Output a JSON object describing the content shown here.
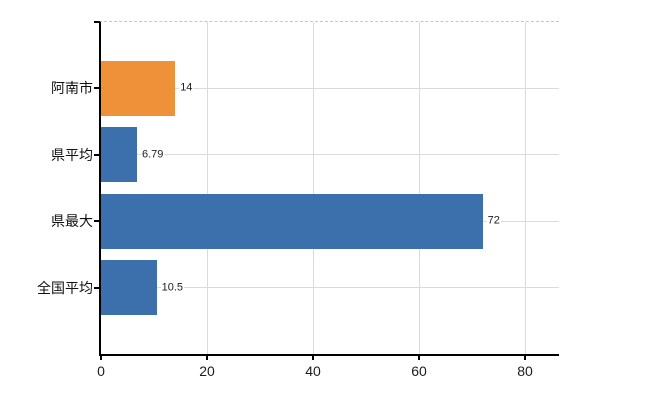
{
  "chart_data": {
    "type": "bar",
    "orientation": "horizontal",
    "title": "",
    "xlabel": "",
    "ylabel": "",
    "categories": [
      "阿南市",
      "県平均",
      "県最大",
      "全国平均"
    ],
    "values": [
      14,
      6.79,
      72,
      10.5
    ],
    "value_labels": [
      "14",
      "6.79",
      "72",
      "10.5"
    ],
    "bar_colors": [
      "#ef9138",
      "#3b70ac",
      "#3b70ac",
      "#3b70ac"
    ],
    "x_ticks": [
      0,
      20,
      40,
      60,
      80
    ],
    "x_tick_labels": [
      "0",
      "20",
      "40",
      "60",
      "80"
    ],
    "xlim": [
      0,
      86.4
    ],
    "grid": true,
    "legend": false,
    "grid_color": "#d9dcd9",
    "axis_color": "#000000",
    "top_border_style": "dashed",
    "background": "#ffffff"
  }
}
